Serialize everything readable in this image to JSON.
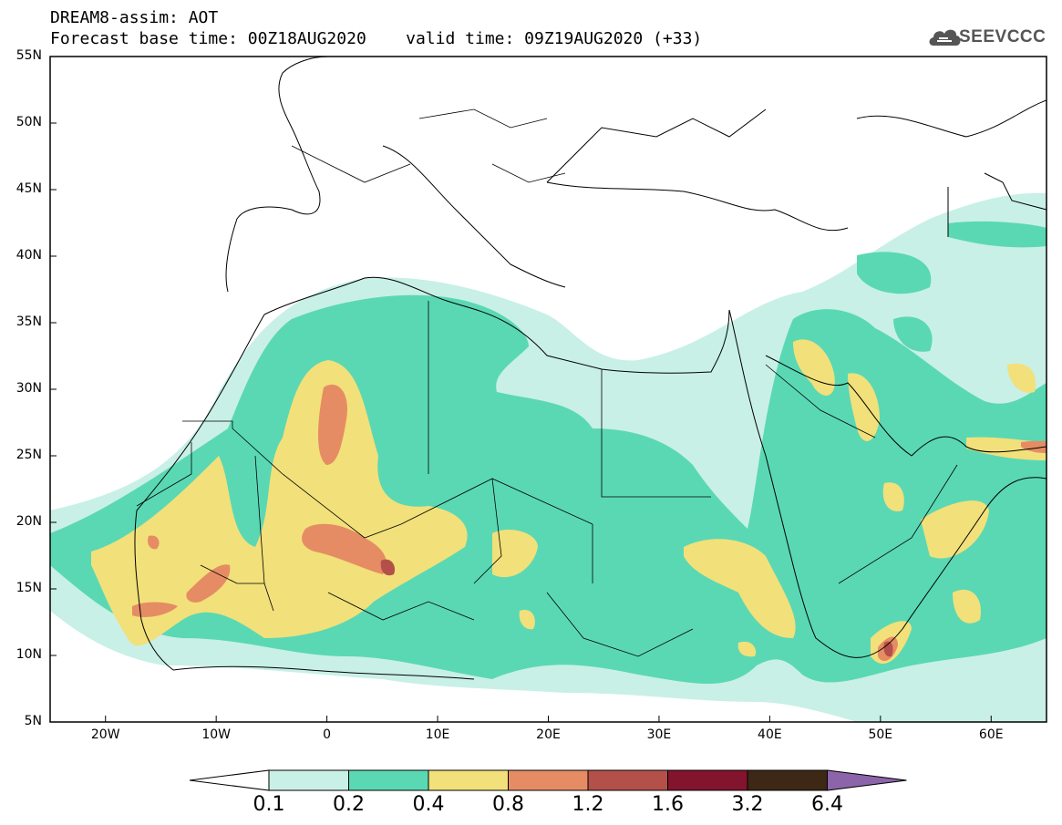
{
  "header": {
    "line1": "DREAM8-assim: AOT",
    "line2": "Forecast base time: 00Z18AUG2020    valid time: 09Z19AUG2020 (+33)"
  },
  "logo": {
    "text": "SEEVCCC",
    "icon": "cloud-logo-icon"
  },
  "map": {
    "lat_labels": [
      "55N",
      "50N",
      "45N",
      "40N",
      "35N",
      "30N",
      "25N",
      "20N",
      "15N",
      "10N",
      "5N"
    ],
    "lon_labels": [
      "20W",
      "10W",
      "0",
      "10E",
      "20E",
      "30E",
      "40E",
      "50E",
      "60E"
    ],
    "lon_range": [
      -25,
      65
    ],
    "lat_range": [
      5,
      55
    ]
  },
  "colorbar": {
    "labels": [
      "0.1",
      "0.2",
      "0.4",
      "0.8",
      "1.2",
      "1.6",
      "3.2",
      "6.4"
    ],
    "colors": [
      "#ffffff",
      "#c8f0e6",
      "#5ad8b4",
      "#f2e07a",
      "#e68c64",
      "#b4504a",
      "#82142d",
      "#3c2814",
      "#8c64aa"
    ]
  }
}
